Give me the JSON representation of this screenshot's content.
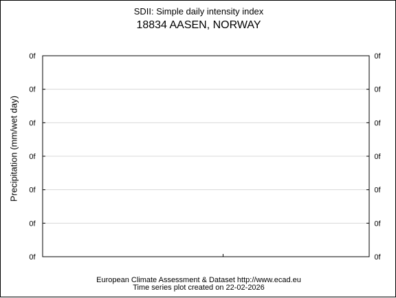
{
  "chart_data": {
    "type": "line",
    "title": "SDII: Simple daily intensity index",
    "subtitle": "18834 AASEN, NORWAY",
    "ylabel": "Precipitation (mm/wet day)",
    "xlabel": "",
    "series": [],
    "y_tick_labels": [
      "0f",
      "0f",
      "0f",
      "0f",
      "0f",
      "0f",
      "0f"
    ],
    "grid": true
  },
  "footer": {
    "source": "European Climate Assessment & Dataset  http://www.ecad.eu",
    "created": "Time series plot created on 22-02-2026"
  }
}
